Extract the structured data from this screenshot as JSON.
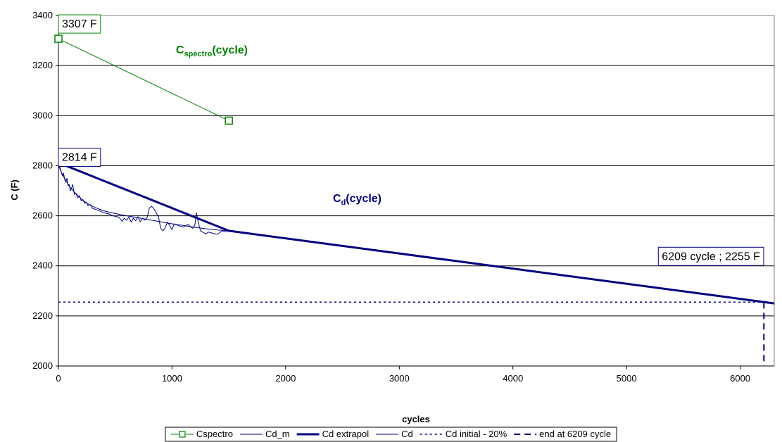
{
  "chart_data": {
    "type": "line",
    "xlabel": "cycles",
    "ylabel": "C (F)",
    "xlim": [
      0,
      6300
    ],
    "ylim": [
      2000,
      3400
    ],
    "x_ticks": [
      0,
      1000,
      2000,
      3000,
      4000,
      5000,
      6000
    ],
    "y_ticks": [
      2000,
      2200,
      2400,
      2600,
      2800,
      3000,
      3200,
      3400
    ],
    "grid": "horizontal",
    "legend_position": "bottom",
    "series": [
      {
        "name": "Cspectro",
        "color": "#008000",
        "marker": "square",
        "x": [
          0,
          1500
        ],
        "y": [
          3307,
          2980
        ]
      },
      {
        "name": "Cd_m",
        "color": "#000080",
        "x": [
          0,
          30,
          60,
          100,
          150,
          200,
          250,
          300,
          350,
          400,
          450,
          500,
          600,
          700,
          800,
          900,
          1000,
          1100,
          1200,
          1300,
          1400,
          1500
        ],
        "y": [
          2800,
          2770,
          2745,
          2715,
          2690,
          2668,
          2650,
          2638,
          2628,
          2620,
          2614,
          2609,
          2600,
          2592,
          2584,
          2576,
          2568,
          2561,
          2554,
          2548,
          2543,
          2540
        ]
      },
      {
        "name": "Cd extrapol",
        "color": "#000080",
        "style": "thick",
        "x": [
          0,
          1500,
          6300
        ],
        "y": [
          2812,
          2540,
          2250
        ]
      },
      {
        "name": "Cd",
        "color": "#000080",
        "x": [
          0,
          15,
          25,
          35,
          45,
          55,
          65,
          75,
          85,
          95,
          105,
          115,
          125,
          140,
          155,
          170,
          185,
          200,
          215,
          230,
          245,
          260,
          280,
          300,
          330,
          360,
          400,
          440,
          480,
          520,
          540,
          560,
          580,
          600,
          620,
          640,
          660,
          680,
          700,
          720,
          740,
          760,
          780,
          800,
          820,
          840,
          860,
          880,
          900,
          920,
          940,
          960,
          980,
          1000,
          1020,
          1060,
          1100,
          1140,
          1180,
          1200,
          1215,
          1230,
          1250,
          1280,
          1300,
          1320,
          1360,
          1400,
          1440,
          1480,
          1490,
          1500
        ],
        "y": [
          2814,
          2790,
          2775,
          2760,
          2770,
          2745,
          2735,
          2750,
          2720,
          2725,
          2700,
          2710,
          2725,
          2685,
          2690,
          2672,
          2680,
          2660,
          2665,
          2650,
          2655,
          2640,
          2645,
          2630,
          2625,
          2620,
          2612,
          2608,
          2600,
          2596,
          2590,
          2578,
          2590,
          2582,
          2595,
          2575,
          2590,
          2580,
          2596,
          2576,
          2590,
          2583,
          2592,
          2630,
          2638,
          2628,
          2612,
          2596,
          2550,
          2540,
          2552,
          2575,
          2560,
          2545,
          2568,
          2560,
          2555,
          2565,
          2550,
          2560,
          2612,
          2575,
          2540,
          2532,
          2528,
          2535,
          2530,
          2526,
          2540,
          2535,
          2545,
          2540
        ]
      },
      {
        "name": "Cd initial - 20%",
        "color": "#000080",
        "style": "dotted",
        "x": [
          0,
          6209
        ],
        "y": [
          2255,
          2255
        ]
      },
      {
        "name": "end at 6209 cycle",
        "color": "#000080",
        "style": "dashed",
        "x": [
          6209,
          6209
        ],
        "y": [
          2255,
          2000
        ]
      }
    ],
    "annotations": [
      {
        "id": "spectro-start",
        "text": "3307 F",
        "x": 0,
        "y": 3307,
        "border_color": "#008000"
      },
      {
        "id": "cd-start",
        "text": "2814 F",
        "x": 0,
        "y": 2814,
        "border_color": "#000080"
      },
      {
        "id": "cd-end",
        "text": "6209 cycle ; 2255 F",
        "x": 6209,
        "y": 2255,
        "border_color": "#000080"
      }
    ],
    "series_labels": [
      {
        "id": "spectro-label",
        "main": "C",
        "sub": "spectro",
        "suffix": "(cycle)",
        "color": "#008000"
      },
      {
        "id": "cd-label",
        "main": "C",
        "sub": "d",
        "suffix": "(cycle)",
        "color": "#000080"
      }
    ]
  }
}
